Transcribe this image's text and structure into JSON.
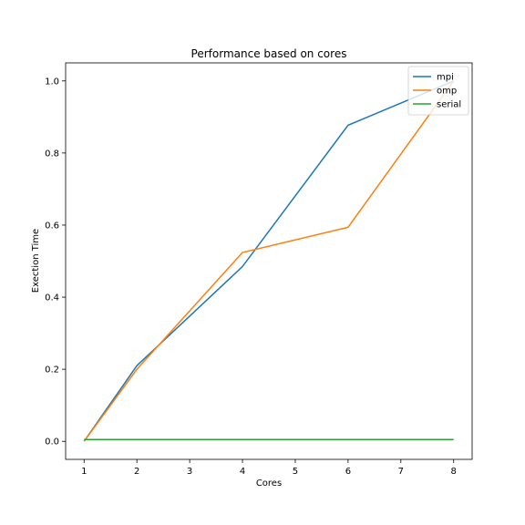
{
  "chart_data": {
    "type": "line",
    "title": "Performance based on cores",
    "xlabel": "Cores",
    "ylabel": "Exection Time",
    "xlim": [
      0.65,
      8.35
    ],
    "ylim": [
      -0.05,
      1.05
    ],
    "xticks": [
      1,
      2,
      3,
      4,
      5,
      6,
      7,
      8
    ],
    "yticks": [
      0.0,
      0.2,
      0.4,
      0.6,
      0.8,
      1.0
    ],
    "x": [
      1,
      2,
      4,
      6,
      8
    ],
    "series": [
      {
        "name": "mpi",
        "color": "#1f77b4",
        "values": [
          0.0,
          0.21,
          0.485,
          0.877,
          1.0
        ]
      },
      {
        "name": "omp",
        "color": "#ff7f0e",
        "values": [
          0.0,
          0.2,
          0.524,
          0.594,
          1.0
        ]
      },
      {
        "name": "serial",
        "color": "#2ca02c",
        "values": [
          0.005,
          0.005,
          0.005,
          0.005,
          0.005
        ]
      }
    ],
    "legend_position": "top-right",
    "grid": false
  }
}
